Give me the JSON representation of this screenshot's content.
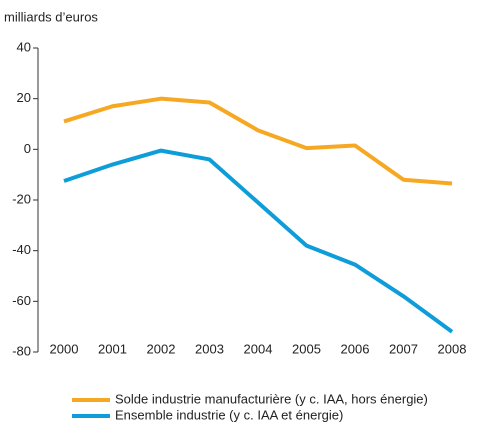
{
  "chart_data": {
    "type": "line",
    "y_label": "milliards d’euros",
    "x": [
      2000,
      2001,
      2002,
      2003,
      2004,
      2005,
      2006,
      2007,
      2008
    ],
    "series": [
      {
        "name": "Solde industrie manufacturière (y c. IAA, hors énergie)",
        "color": "#f7a823",
        "values": [
          11,
          17,
          20,
          18.5,
          7.5,
          0.5,
          1.5,
          -12,
          -13.5
        ]
      },
      {
        "name": "Ensemble industrie (y c. IAA et énergie)",
        "color": "#0e9dd9",
        "values": [
          -12.5,
          -6,
          -0.5,
          -4,
          -21,
          -38,
          -45.5,
          -58,
          -72
        ]
      }
    ],
    "xlim": [
      2000,
      2008
    ],
    "ylim": [
      -80,
      40
    ],
    "yticks": [
      -80,
      -60,
      -40,
      -20,
      0,
      20,
      40
    ],
    "legend": "bottom"
  }
}
